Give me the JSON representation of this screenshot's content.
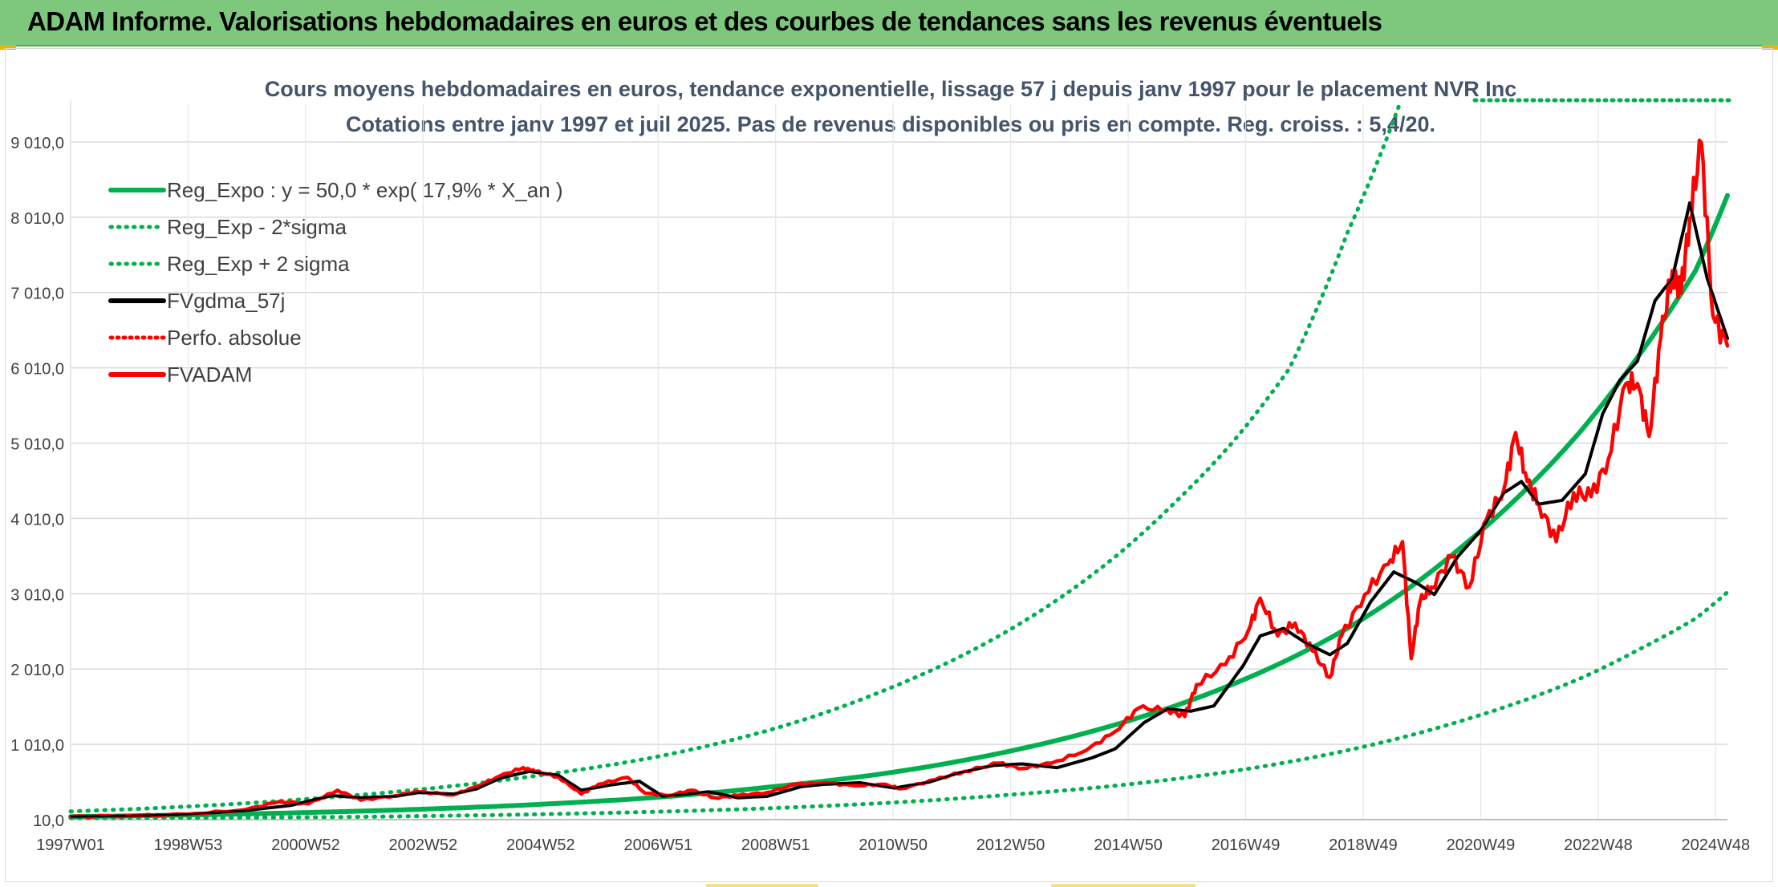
{
  "header": {
    "title": "ADAM Informe. Valorisations hebdomadaires en euros et des courbes de tendances sans les revenus éventuels"
  },
  "colors": {
    "header_bg": "#7ec87e",
    "trend": "#00b050",
    "smooth": "#000000",
    "price": "#ff0000",
    "grid": "#d9d9d9"
  },
  "chart_data": {
    "type": "line",
    "title": "Cours moyens hebdomadaires en euros, tendance exponentielle, lissage 57 j depuis janv 1997 pour le placement NVR Inc",
    "subtitle": "Cotations entre janv 1997 et juil 2025. Pas de revenus disponibles ou pris en compte. Reg. croiss. : 5,4/20.",
    "xlabel": "",
    "ylabel": "",
    "x_ticks": [
      "1997W01",
      "1998W53",
      "2000W52",
      "2002W52",
      "2004W52",
      "2006W51",
      "2008W51",
      "2010W50",
      "2012W50",
      "2014W50",
      "2016W49",
      "2018W49",
      "2020W49",
      "2022W48",
      "2024W48"
    ],
    "y_ticks": [
      "10,0",
      "1 010,0",
      "2 010,0",
      "3 010,0",
      "4 010,0",
      "5 010,0",
      "6 010,0",
      "7 010,0",
      "8 010,0",
      "9 010,0"
    ],
    "ylim": [
      10,
      9510
    ],
    "xlim": [
      1997.0,
      2025.55
    ],
    "grid": true,
    "legend_position": "top-left",
    "legend": [
      {
        "label": "Reg_Expo : y = 50,0 * exp( 17,9% *  X_an )",
        "style": "solid-green"
      },
      {
        "label": "Reg_Exp - 2*sigma",
        "style": "dotted-green"
      },
      {
        "label": "Reg_Exp + 2 sigma",
        "style": "dotted-green"
      },
      {
        "label": "FVgdma_57j",
        "style": "solid-black"
      },
      {
        "label": "Perfo. absolue",
        "style": "dotted-red"
      },
      {
        "label": "FVADAM",
        "style": "solid-red"
      }
    ],
    "series": [
      {
        "name": "Reg_Expo : y = 50,0 * exp( 17,9% *  X_an )",
        "x": [
          1997.0,
          1999.0,
          2001.0,
          2003.0,
          2005.0,
          2007.0,
          2009.0,
          2011.0,
          2013.0,
          2015.0,
          2017.0,
          2019.0,
          2021.0,
          2023.0,
          2024.0,
          2025.0,
          2025.55
        ],
        "values": [
          50,
          72,
          103,
          147,
          210,
          300,
          440,
          620,
          890,
          1270,
          1800,
          2550,
          3650,
          5150,
          6150,
          7300,
          8300
        ]
      },
      {
        "name": "Reg_Exp - 2*sigma",
        "x": [
          1997.0,
          2001.0,
          2005.0,
          2009.0,
          2013.0,
          2015.0,
          2017.0,
          2019.0,
          2021.0,
          2023.0,
          2024.0,
          2025.0,
          2025.55
        ],
        "values": [
          30,
          40,
          80,
          160,
          330,
          460,
          650,
          930,
          1330,
          1880,
          2260,
          2680,
          3030
        ]
      },
      {
        "name": "Reg_Exp + 2 sigma",
        "x": [
          1997.0,
          2001.0,
          2003.0,
          2005.0,
          2007.0,
          2009.0,
          2011.0,
          2013.0,
          2015.0,
          2016.0,
          2017.0,
          2018.0,
          2019.0,
          2019.9
        ],
        "values": [
          120,
          280,
          410,
          590,
          830,
          1190,
          1720,
          2450,
          3500,
          4200,
          5000,
          6000,
          7800,
          9510
        ]
      },
      {
        "name": "FVgdma_57j",
        "x": [
          1997.0,
          1998.0,
          1999.0,
          2000.0,
          2000.8,
          2001.5,
          2002.0,
          2002.6,
          2003.0,
          2003.6,
          2004.0,
          2004.4,
          2004.9,
          2005.4,
          2005.8,
          2006.3,
          2006.8,
          2007.2,
          2007.6,
          2008.0,
          2008.5,
          2009.0,
          2009.6,
          2010.0,
          2010.6,
          2011.2,
          2011.8,
          2012.3,
          2012.9,
          2013.4,
          2014.0,
          2014.6,
          2015.0,
          2015.5,
          2015.9,
          2016.3,
          2016.7,
          2017.2,
          2017.5,
          2017.9,
          2018.3,
          2018.7,
          2019.0,
          2019.4,
          2019.8,
          2020.2,
          2020.5,
          2020.9,
          2021.3,
          2021.7,
          2022.0,
          2022.3,
          2022.7,
          2023.1,
          2023.4,
          2023.7,
          2024.0,
          2024.3,
          2024.6,
          2024.9,
          2025.2,
          2025.55
        ],
        "values": [
          50,
          60,
          80,
          130,
          200,
          330,
          300,
          320,
          370,
          350,
          420,
          560,
          650,
          600,
          400,
          470,
          520,
          320,
          350,
          380,
          300,
          320,
          450,
          480,
          500,
          430,
          510,
          630,
          730,
          750,
          700,
          830,
          950,
          1300,
          1480,
          1450,
          1520,
          2050,
          2450,
          2550,
          2350,
          2200,
          2350,
          2900,
          3300,
          3150,
          3000,
          3500,
          3850,
          4350,
          4500,
          4200,
          4250,
          4600,
          5400,
          5850,
          6100,
          6900,
          7200,
          8200,
          7200,
          6400
        ]
      },
      {
        "name": "Perfo. absolue",
        "x": [],
        "values": []
      },
      {
        "name": "FVADAM",
        "x": [
          1997.0,
          1998.0,
          1999.0,
          2000.0,
          2000.6,
          2001.1,
          2001.6,
          2002.0,
          2002.6,
          2003.0,
          2003.6,
          2004.0,
          2004.4,
          2004.8,
          2005.0,
          2005.4,
          2005.8,
          2006.1,
          2006.6,
          2006.9,
          2007.3,
          2007.7,
          2008.1,
          2008.5,
          2009.0,
          2009.5,
          2010.0,
          2010.5,
          2011.0,
          2011.3,
          2011.9,
          2012.4,
          2013.0,
          2013.4,
          2013.9,
          2014.5,
          2015.0,
          2015.4,
          2015.9,
          2016.2,
          2016.4,
          2016.9,
          2017.3,
          2017.5,
          2017.8,
          2018.1,
          2018.4,
          2018.7,
          2018.9,
          2019.3,
          2019.7,
          2019.95,
          2020.1,
          2020.25,
          2020.45,
          2020.8,
          2021.1,
          2021.4,
          2021.7,
          2021.9,
          2022.1,
          2022.3,
          2022.6,
          2022.9,
          2023.2,
          2023.5,
          2023.8,
          2024.0,
          2024.2,
          2024.4,
          2024.6,
          2024.75,
          2024.9,
          2025.1,
          2025.3,
          2025.55
        ],
        "values": [
          50,
          60,
          80,
          140,
          250,
          220,
          400,
          270,
          330,
          380,
          340,
          450,
          590,
          700,
          650,
          580,
          350,
          480,
          570,
          360,
          330,
          400,
          300,
          330,
          370,
          480,
          500,
          460,
          480,
          420,
          540,
          650,
          760,
          690,
          760,
          930,
          1180,
          1490,
          1470,
          1380,
          1800,
          2070,
          2530,
          2950,
          2450,
          2620,
          2250,
          1900,
          2450,
          3000,
          3400,
          3700,
          2150,
          2900,
          3100,
          3500,
          3100,
          4000,
          4400,
          5150,
          4500,
          4200,
          3700,
          4350,
          4300,
          4800,
          5800,
          5800,
          5100,
          6400,
          7300,
          7000,
          8000,
          9000,
          6700,
          6300
        ]
      }
    ]
  }
}
